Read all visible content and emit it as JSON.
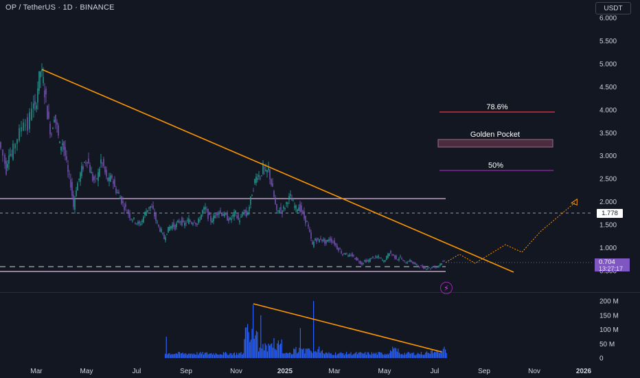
{
  "header": {
    "title": "OP / TetherUS · 1D · BINANCE",
    "currency_button": "USDT"
  },
  "badges": {
    "last_price": "0.704",
    "countdown": "13:27:17",
    "level": "1.778"
  },
  "icons": {
    "replay": "lightning-icon"
  },
  "colors": {
    "background": "#131722",
    "up": "#26a69a",
    "down": "#7e57c2",
    "trendline": "#ff9800",
    "fib_786": "#f23645",
    "golden_pocket": "#7b3f5a",
    "fib_50": "#9c27b0",
    "volume": "#2962ff",
    "resistance": "#e1bee7"
  },
  "annotations": {
    "fib_786": "78.6%",
    "golden_pocket": "Golden Pocket",
    "fib_50": "50%"
  },
  "chart_data": [
    {
      "type": "line",
      "name": "price",
      "y_ticks": [
        0.5,
        1.0,
        1.5,
        2.0,
        2.5,
        3.0,
        3.5,
        4.0,
        4.5,
        5.0,
        5.5,
        6.0
      ],
      "y_tick_labels": [
        "0.500",
        "1.000",
        "1.500",
        "2.000",
        "2.500",
        "3.000",
        "3.500",
        "4.000",
        "4.500",
        "5.000",
        "5.500",
        "6.000"
      ],
      "x_labels": [
        "Mar",
        "May",
        "Jul",
        "Sep",
        "Nov",
        "2025",
        "Mar",
        "May",
        "Jul",
        "Sep",
        "Nov",
        "2026"
      ],
      "ylim": [
        0.38,
        6.0
      ],
      "points": [
        [
          0,
          3.3
        ],
        [
          6,
          3.0
        ],
        [
          10,
          2.7
        ],
        [
          14,
          3.1
        ],
        [
          18,
          3.0
        ],
        [
          24,
          3.3
        ],
        [
          30,
          3.5
        ],
        [
          36,
          3.8
        ],
        [
          42,
          3.6
        ],
        [
          48,
          4.1
        ],
        [
          52,
          4.0
        ],
        [
          56,
          4.5
        ],
        [
          60,
          4.85
        ],
        [
          64,
          4.6
        ],
        [
          68,
          4.2
        ],
        [
          72,
          3.7
        ],
        [
          76,
          3.5
        ],
        [
          80,
          3.9
        ],
        [
          84,
          3.6
        ],
        [
          88,
          3.2
        ],
        [
          92,
          3.3
        ],
        [
          96,
          3.0
        ],
        [
          100,
          2.6
        ],
        [
          104,
          2.4
        ],
        [
          108,
          1.9
        ],
        [
          112,
          2.3
        ],
        [
          116,
          2.5
        ],
        [
          120,
          2.7
        ],
        [
          124,
          2.85
        ],
        [
          128,
          2.95
        ],
        [
          132,
          2.7
        ],
        [
          136,
          2.5
        ],
        [
          140,
          2.45
        ],
        [
          144,
          2.6
        ],
        [
          148,
          2.9
        ],
        [
          152,
          2.75
        ],
        [
          156,
          2.5
        ],
        [
          160,
          2.45
        ],
        [
          164,
          2.55
        ],
        [
          168,
          2.3
        ],
        [
          172,
          2.2
        ],
        [
          176,
          2.1
        ],
        [
          180,
          1.95
        ],
        [
          184,
          1.85
        ],
        [
          188,
          1.75
        ],
        [
          192,
          1.65
        ],
        [
          196,
          1.6
        ],
        [
          200,
          1.55
        ],
        [
          204,
          1.5
        ],
        [
          208,
          1.6
        ],
        [
          212,
          1.75
        ],
        [
          216,
          1.85
        ],
        [
          220,
          1.9
        ],
        [
          224,
          1.8
        ],
        [
          228,
          1.6
        ],
        [
          232,
          1.45
        ],
        [
          236,
          1.35
        ],
        [
          240,
          1.2
        ],
        [
          244,
          1.35
        ],
        [
          248,
          1.45
        ],
        [
          252,
          1.5
        ],
        [
          256,
          1.45
        ],
        [
          260,
          1.55
        ],
        [
          264,
          1.6
        ],
        [
          268,
          1.5
        ],
        [
          272,
          1.55
        ],
        [
          276,
          1.6
        ],
        [
          280,
          1.55
        ],
        [
          284,
          1.6
        ],
        [
          288,
          1.5
        ],
        [
          292,
          1.65
        ],
        [
          296,
          1.8
        ],
        [
          300,
          1.85
        ],
        [
          304,
          1.7
        ],
        [
          308,
          1.6
        ],
        [
          312,
          1.65
        ],
        [
          316,
          1.75
        ],
        [
          320,
          1.8
        ],
        [
          324,
          1.75
        ],
        [
          328,
          1.7
        ],
        [
          332,
          1.65
        ],
        [
          336,
          1.6
        ],
        [
          340,
          1.7
        ],
        [
          344,
          1.75
        ],
        [
          348,
          1.6
        ],
        [
          352,
          1.65
        ],
        [
          356,
          1.8
        ],
        [
          360,
          1.7
        ],
        [
          364,
          1.9
        ],
        [
          368,
          2.2
        ],
        [
          372,
          2.45
        ],
        [
          376,
          2.6
        ],
        [
          380,
          2.55
        ],
        [
          384,
          2.75
        ],
        [
          388,
          2.6
        ],
        [
          392,
          2.7
        ],
        [
          396,
          2.4
        ],
        [
          400,
          2.1
        ],
        [
          404,
          1.75
        ],
        [
          408,
          1.85
        ],
        [
          412,
          1.8
        ],
        [
          416,
          1.9
        ],
        [
          420,
          2.05
        ],
        [
          424,
          2.1
        ],
        [
          428,
          1.95
        ],
        [
          432,
          1.85
        ],
        [
          436,
          1.9
        ],
        [
          440,
          1.8
        ],
        [
          444,
          1.65
        ],
        [
          448,
          1.55
        ],
        [
          452,
          1.3
        ],
        [
          456,
          1.05
        ],
        [
          460,
          1.2
        ],
        [
          464,
          1.15
        ],
        [
          468,
          1.2
        ],
        [
          472,
          1.15
        ],
        [
          476,
          1.1
        ],
        [
          480,
          1.2
        ],
        [
          484,
          1.15
        ],
        [
          488,
          1.1
        ],
        [
          492,
          1.0
        ],
        [
          496,
          0.95
        ],
        [
          500,
          0.85
        ],
        [
          504,
          0.9
        ],
        [
          508,
          0.8
        ],
        [
          512,
          0.85
        ],
        [
          516,
          0.8
        ],
        [
          520,
          0.75
        ],
        [
          524,
          0.7
        ],
        [
          528,
          0.65
        ],
        [
          532,
          0.72
        ],
        [
          536,
          0.7
        ],
        [
          540,
          0.75
        ],
        [
          544,
          0.8
        ],
        [
          548,
          0.78
        ],
        [
          552,
          0.8
        ],
        [
          556,
          0.75
        ],
        [
          560,
          0.7
        ],
        [
          564,
          0.8
        ],
        [
          568,
          0.9
        ],
        [
          572,
          0.85
        ],
        [
          576,
          0.8
        ],
        [
          580,
          0.75
        ],
        [
          584,
          0.8
        ],
        [
          588,
          0.7
        ],
        [
          592,
          0.68
        ],
        [
          596,
          0.72
        ],
        [
          600,
          0.7
        ],
        [
          604,
          0.65
        ],
        [
          608,
          0.62
        ],
        [
          612,
          0.6
        ],
        [
          616,
          0.58
        ],
        [
          620,
          0.55
        ],
        [
          624,
          0.57
        ],
        [
          628,
          0.55
        ],
        [
          632,
          0.6
        ],
        [
          636,
          0.58
        ],
        [
          640,
          0.62
        ],
        [
          644,
          0.68
        ],
        [
          648,
          0.7
        ]
      ]
    },
    {
      "type": "bar",
      "name": "volume",
      "y_ticks": [
        0,
        50,
        100,
        150,
        200
      ],
      "y_tick_labels": [
        "0",
        "50 M",
        "100 M",
        "150 M",
        "200 M"
      ],
      "ylim": [
        0,
        210
      ]
    }
  ]
}
